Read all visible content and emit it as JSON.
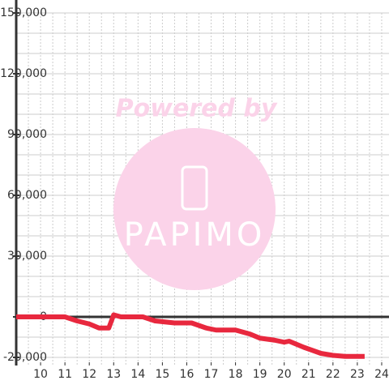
{
  "chart_data": {
    "type": "line",
    "watermark": {
      "top": "Powered by",
      "logo": "PAPIMO"
    },
    "x": [
      9,
      11.0,
      11.5,
      12.0,
      12.4,
      12.8,
      13.0,
      13.3,
      14.2,
      14.7,
      15.5,
      16.2,
      16.8,
      17.2,
      18.0,
      18.6,
      19.0,
      19.6,
      20.0,
      20.2,
      20.8,
      21.5,
      22.0,
      22.5,
      23.3
    ],
    "series": [
      {
        "color": "#e8283e",
        "values": [
          0,
          0,
          -2000,
          -3500,
          -5500,
          -5500,
          1000,
          0,
          0,
          -2000,
          -3000,
          -3000,
          -5500,
          -6500,
          -6500,
          -8500,
          -10500,
          -11500,
          -12500,
          -12000,
          -15000,
          -18000,
          -19000,
          -19500,
          -19500
        ]
      }
    ],
    "xlim": [
      9,
      24.3
    ],
    "xticks": [
      10,
      11,
      12,
      13,
      14,
      15,
      16,
      17,
      18,
      19,
      20,
      21,
      22,
      23,
      24
    ],
    "ylim": [
      -24000,
      150000
    ],
    "yticks": [
      {
        "value": -20000,
        "label": "-20,000"
      },
      0,
      {
        "value": 30000,
        "label": "30,000"
      },
      {
        "value": 60000,
        "label": "60,000"
      },
      {
        "value": 90000,
        "label": "90,000"
      },
      {
        "value": 120000,
        "label": "120,000"
      },
      {
        "value": 150000,
        "label": "150,000"
      }
    ],
    "y_grid": [
      -20000,
      -10000,
      0,
      10000,
      20000,
      30000,
      40000,
      50000,
      60000,
      70000,
      80000,
      90000,
      100000,
      110000,
      120000,
      130000,
      140000,
      150000
    ],
    "x_grid": [
      9.5,
      10,
      10.5,
      11,
      11.5,
      12,
      12.5,
      13,
      13.5,
      14,
      14.5,
      15,
      15.5,
      16,
      16.5,
      17,
      17.5,
      18,
      18.5,
      19,
      19.5,
      20,
      20.5,
      21,
      21.5,
      22,
      22.5,
      23,
      23.5,
      24
    ],
    "grid": true
  }
}
